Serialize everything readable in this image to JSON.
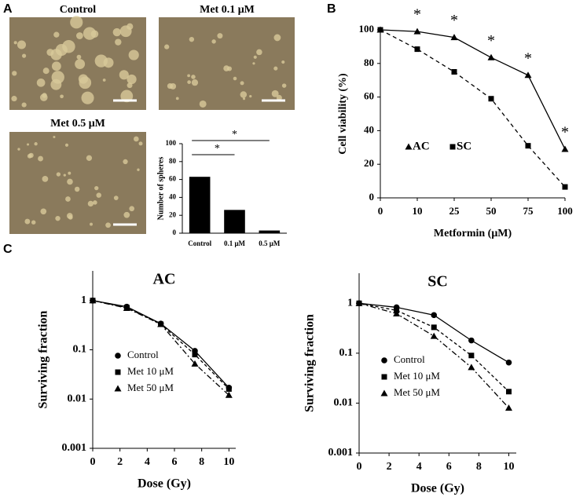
{
  "panel_labels": [
    "A",
    "B",
    "C"
  ],
  "micrographs": [
    {
      "label": "Control"
    },
    {
      "label": "Met 0.1 μM"
    },
    {
      "label": "Met 0.5 μM"
    }
  ],
  "chart_data": [
    {
      "type": "bar",
      "y_label": "Number of spheres",
      "categories": [
        "Control",
        "0.1 μM",
        "0.5 μM"
      ],
      "values": [
        63,
        26,
        3
      ],
      "color": "#000000",
      "ylim": [
        0,
        100
      ],
      "yticks": [
        0,
        20,
        40,
        60,
        80,
        100
      ],
      "annotations": [
        "*",
        "*"
      ]
    },
    {
      "type": "line",
      "x_label": "Metformin (μM)",
      "y_label": "Cell viability (%)",
      "categories": [
        "0",
        "10",
        "25",
        "50",
        "75",
        "100"
      ],
      "series": [
        {
          "name": "AC",
          "color": "#000000",
          "marker": "triangle",
          "dash": "none",
          "values": [
            100,
            99,
            95.5,
            83.5,
            73,
            29
          ]
        },
        {
          "name": "SC",
          "color": "#000000",
          "marker": "square",
          "dash": "5,4",
          "values": [
            100,
            88.5,
            75,
            59,
            31,
            6.5
          ]
        }
      ],
      "ylim": [
        0,
        100
      ],
      "yticks": [
        0,
        20,
        40,
        60,
        80,
        100
      ],
      "legend": "center-left",
      "annotations": [
        "*",
        "*",
        "*",
        "*",
        "*"
      ]
    },
    {
      "type": "line",
      "title": "AC",
      "x_label": "Dose (Gy)",
      "y_label": "Surviving fraction",
      "x": [
        0,
        2.5,
        5,
        7.5,
        10
      ],
      "series": [
        {
          "name": "Control",
          "color": "#000000",
          "marker": "circle",
          "dash": "none",
          "values": [
            1,
            0.75,
            0.34,
            0.095,
            0.017
          ]
        },
        {
          "name": "Met 10 μM",
          "color": "#000000",
          "marker": "square",
          "dash": "4,3",
          "values": [
            1,
            0.72,
            0.33,
            0.08,
            0.016
          ]
        },
        {
          "name": "Met 50 μM",
          "color": "#000000",
          "marker": "triangle",
          "dash": "7,3,2,3",
          "values": [
            1,
            0.7,
            0.33,
            0.052,
            0.012
          ]
        }
      ],
      "xlim": [
        0,
        10.5
      ],
      "xticks": [
        0,
        2,
        4,
        6,
        8,
        10
      ],
      "ylim": [
        0.001,
        4
      ],
      "yticks": [
        0.001,
        0.01,
        0.1,
        1
      ],
      "log_y": true,
      "legend": "lower-left"
    },
    {
      "type": "line",
      "title": "SC",
      "x_label": "Dose (Gy)",
      "y_label": "Surviving fraction",
      "x": [
        0,
        2.5,
        5,
        7.5,
        10
      ],
      "series": [
        {
          "name": "Control",
          "color": "#000000",
          "marker": "circle",
          "dash": "none",
          "values": [
            1,
            0.83,
            0.58,
            0.18,
            0.065
          ]
        },
        {
          "name": "Met 10 μM",
          "color": "#000000",
          "marker": "square",
          "dash": "4,3",
          "values": [
            1,
            0.72,
            0.33,
            0.09,
            0.017
          ]
        },
        {
          "name": "Met 50 μM",
          "color": "#000000",
          "marker": "triangle",
          "dash": "7,3,2,3",
          "values": [
            1,
            0.62,
            0.22,
            0.052,
            0.008
          ]
        }
      ],
      "xlim": [
        0,
        10.5
      ],
      "xticks": [
        0,
        2,
        4,
        6,
        8,
        10
      ],
      "ylim": [
        0.001,
        4
      ],
      "yticks": [
        0.001,
        0.01,
        0.1,
        1
      ],
      "log_y": true,
      "legend": "lower-left"
    }
  ]
}
